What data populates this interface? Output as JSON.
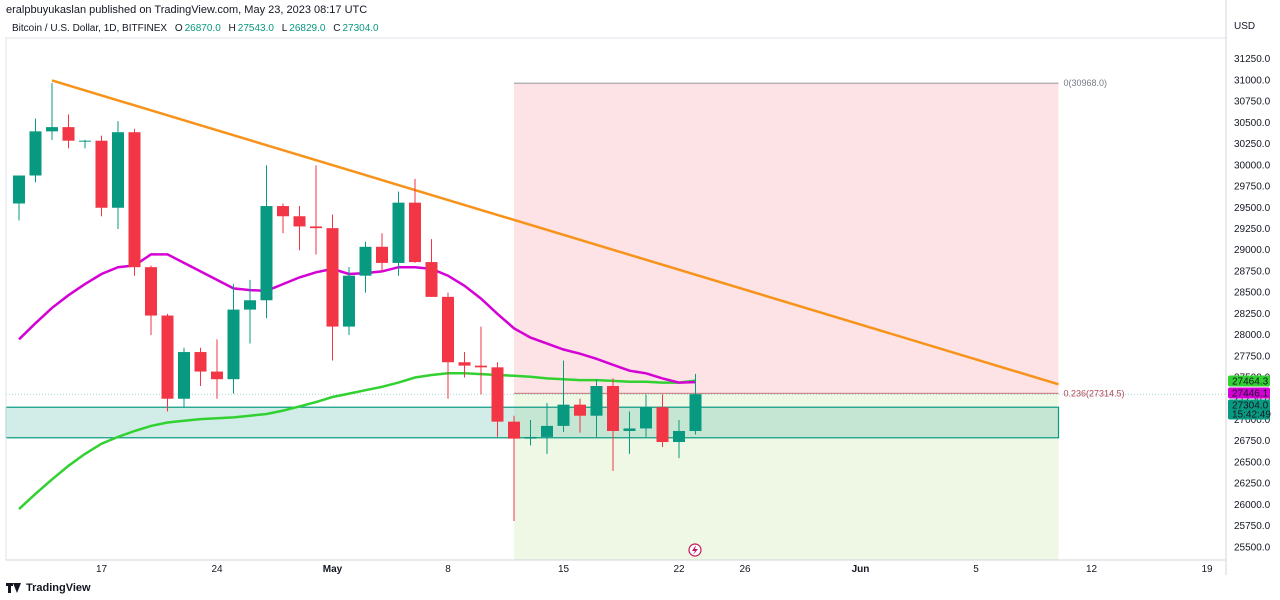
{
  "header": {
    "published_text": "eralpbuyukaslan published on TradingView.com, May 23, 2023 08:17 UTC",
    "symbol": "Bitcoin / U.S. Dollar, 1D, BITFINEX",
    "open_label": "O",
    "open_value": "26870.0",
    "high_label": "H",
    "high_value": "27543.0",
    "low_label": "L",
    "low_value": "26829.0",
    "close_label": "C",
    "close_value": "27304.0",
    "currency": "USD"
  },
  "footer": {
    "brand": "TradingView"
  },
  "colors": {
    "up": "#089981",
    "down": "#f23645",
    "trendline": "#f7931a",
    "ma_fast": "#d500d5",
    "ma_slow": "#32d132"
  },
  "chart_data": {
    "type": "candlestick",
    "x_tick_labels": [
      "17",
      "24",
      "May",
      "8",
      "15",
      "22",
      "26",
      "Jun",
      "5",
      "12",
      "19"
    ],
    "y_tick_labels": [
      "31250.0",
      "31000.0",
      "30750.0",
      "30500.0",
      "30250.0",
      "30000.0",
      "29750.0",
      "29500.0",
      "29250.0",
      "29000.0",
      "28750.0",
      "28500.0",
      "28250.0",
      "28000.0",
      "27750.0",
      "27500.0",
      "27250.0",
      "27000.0",
      "26750.0",
      "26500.0",
      "26250.0",
      "26000.0",
      "25750.0",
      "25500.0"
    ],
    "ylim": [
      25350,
      31500
    ],
    "candles": [
      {
        "o": 29550,
        "h": 29850,
        "l": 29350,
        "c": 29880
      },
      {
        "o": 29880,
        "h": 30550,
        "l": 29800,
        "c": 30400
      },
      {
        "o": 30400,
        "h": 30970,
        "l": 30300,
        "c": 30450
      },
      {
        "o": 30450,
        "h": 30600,
        "l": 30200,
        "c": 30290
      },
      {
        "o": 30290,
        "h": 30300,
        "l": 30200,
        "c": 30290
      },
      {
        "o": 30290,
        "h": 30350,
        "l": 29400,
        "c": 29500
      },
      {
        "o": 29500,
        "h": 30520,
        "l": 29250,
        "c": 30390
      },
      {
        "o": 30390,
        "h": 30430,
        "l": 28700,
        "c": 28800
      },
      {
        "o": 28800,
        "h": 28820,
        "l": 28000,
        "c": 28230
      },
      {
        "o": 28230,
        "h": 28250,
        "l": 27100,
        "c": 27250
      },
      {
        "o": 27250,
        "h": 27850,
        "l": 27150,
        "c": 27800
      },
      {
        "o": 27800,
        "h": 27850,
        "l": 27400,
        "c": 27570
      },
      {
        "o": 27570,
        "h": 27950,
        "l": 27250,
        "c": 27480
      },
      {
        "o": 27480,
        "h": 28600,
        "l": 27310,
        "c": 28300
      },
      {
        "o": 28300,
        "h": 28650,
        "l": 27900,
        "c": 28410
      },
      {
        "o": 28410,
        "h": 30000,
        "l": 28200,
        "c": 29520
      },
      {
        "o": 29520,
        "h": 29550,
        "l": 29200,
        "c": 29400
      },
      {
        "o": 29400,
        "h": 29520,
        "l": 29000,
        "c": 29280
      },
      {
        "o": 29280,
        "h": 30000,
        "l": 28950,
        "c": 29260
      },
      {
        "o": 29260,
        "h": 29420,
        "l": 27700,
        "c": 28100
      },
      {
        "o": 28100,
        "h": 28800,
        "l": 28000,
        "c": 28700
      },
      {
        "o": 28700,
        "h": 29100,
        "l": 28500,
        "c": 29040
      },
      {
        "o": 29040,
        "h": 29200,
        "l": 28750,
        "c": 28850
      },
      {
        "o": 28850,
        "h": 29690,
        "l": 28700,
        "c": 29560
      },
      {
        "o": 29560,
        "h": 29840,
        "l": 28850,
        "c": 28860
      },
      {
        "o": 28860,
        "h": 29130,
        "l": 28450,
        "c": 28450
      },
      {
        "o": 28450,
        "h": 28500,
        "l": 27250,
        "c": 27680
      },
      {
        "o": 27680,
        "h": 27800,
        "l": 27500,
        "c": 27640
      },
      {
        "o": 27640,
        "h": 28100,
        "l": 27300,
        "c": 27620
      },
      {
        "o": 27620,
        "h": 27680,
        "l": 26800,
        "c": 26980
      },
      {
        "o": 26980,
        "h": 27050,
        "l": 25810,
        "c": 26780
      },
      {
        "o": 26780,
        "h": 27000,
        "l": 26700,
        "c": 26800
      },
      {
        "o": 26800,
        "h": 27200,
        "l": 26600,
        "c": 26930
      },
      {
        "o": 26930,
        "h": 27700,
        "l": 26860,
        "c": 27180
      },
      {
        "o": 27180,
        "h": 27250,
        "l": 26850,
        "c": 27050
      },
      {
        "o": 27050,
        "h": 27480,
        "l": 26800,
        "c": 27400
      },
      {
        "o": 27400,
        "h": 27490,
        "l": 26400,
        "c": 26870
      },
      {
        "o": 26870,
        "h": 27100,
        "l": 26600,
        "c": 26900
      },
      {
        "o": 26900,
        "h": 27300,
        "l": 26800,
        "c": 27150
      },
      {
        "o": 27150,
        "h": 27300,
        "l": 26680,
        "c": 26740
      },
      {
        "o": 26740,
        "h": 27000,
        "l": 26550,
        "c": 26870
      },
      {
        "o": 26870,
        "h": 27543,
        "l": 26829,
        "c": 27304
      }
    ],
    "ma_fast": [
      27950,
      28140,
      28320,
      28470,
      28600,
      28720,
      28800,
      28820,
      28950,
      28950,
      28850,
      28750,
      28650,
      28550,
      28530,
      28520,
      28600,
      28680,
      28740,
      28780,
      28720,
      28730,
      28750,
      28800,
      28800,
      28780,
      28700,
      28580,
      28430,
      28250,
      28080,
      27970,
      27900,
      27830,
      27780,
      27720,
      27650,
      27580,
      27550,
      27490,
      27440,
      27446
    ],
    "ma_slow": [
      25950,
      26130,
      26300,
      26460,
      26600,
      26720,
      26800,
      26870,
      26930,
      26970,
      26990,
      27010,
      27020,
      27030,
      27050,
      27070,
      27110,
      27160,
      27210,
      27270,
      27310,
      27350,
      27390,
      27440,
      27500,
      27530,
      27550,
      27550,
      27540,
      27530,
      27520,
      27510,
      27490,
      27480,
      27470,
      27470,
      27460,
      27450,
      27450,
      27440,
      27440,
      27464
    ],
    "trendline": {
      "start_index": 2,
      "start_value": 31000,
      "end_date_index": 63,
      "end_value": 27420
    },
    "fib_levels": [
      {
        "label": "0(30968.0)",
        "value": 30968
      },
      {
        "label": "0.236(27314.5)",
        "value": 27314.5
      }
    ],
    "fib_zone": {
      "start_index": 30,
      "end_index": 63,
      "top": 30968,
      "bottom": 25350
    },
    "support_zone": {
      "top": 27150,
      "bottom": 26790
    },
    "price_labels": [
      {
        "text": "27464.3",
        "value": 27464.3,
        "color": "#32d132",
        "text_color": "#131722"
      },
      {
        "text": "27446.1",
        "value": 27446.1,
        "color": "#d500d5",
        "text_color": "#ffffff"
      },
      {
        "text": "27304.0",
        "value": 27304.0,
        "color": "#089981",
        "text_color": "#ffffff",
        "sub": "15:42:49"
      }
    ]
  }
}
